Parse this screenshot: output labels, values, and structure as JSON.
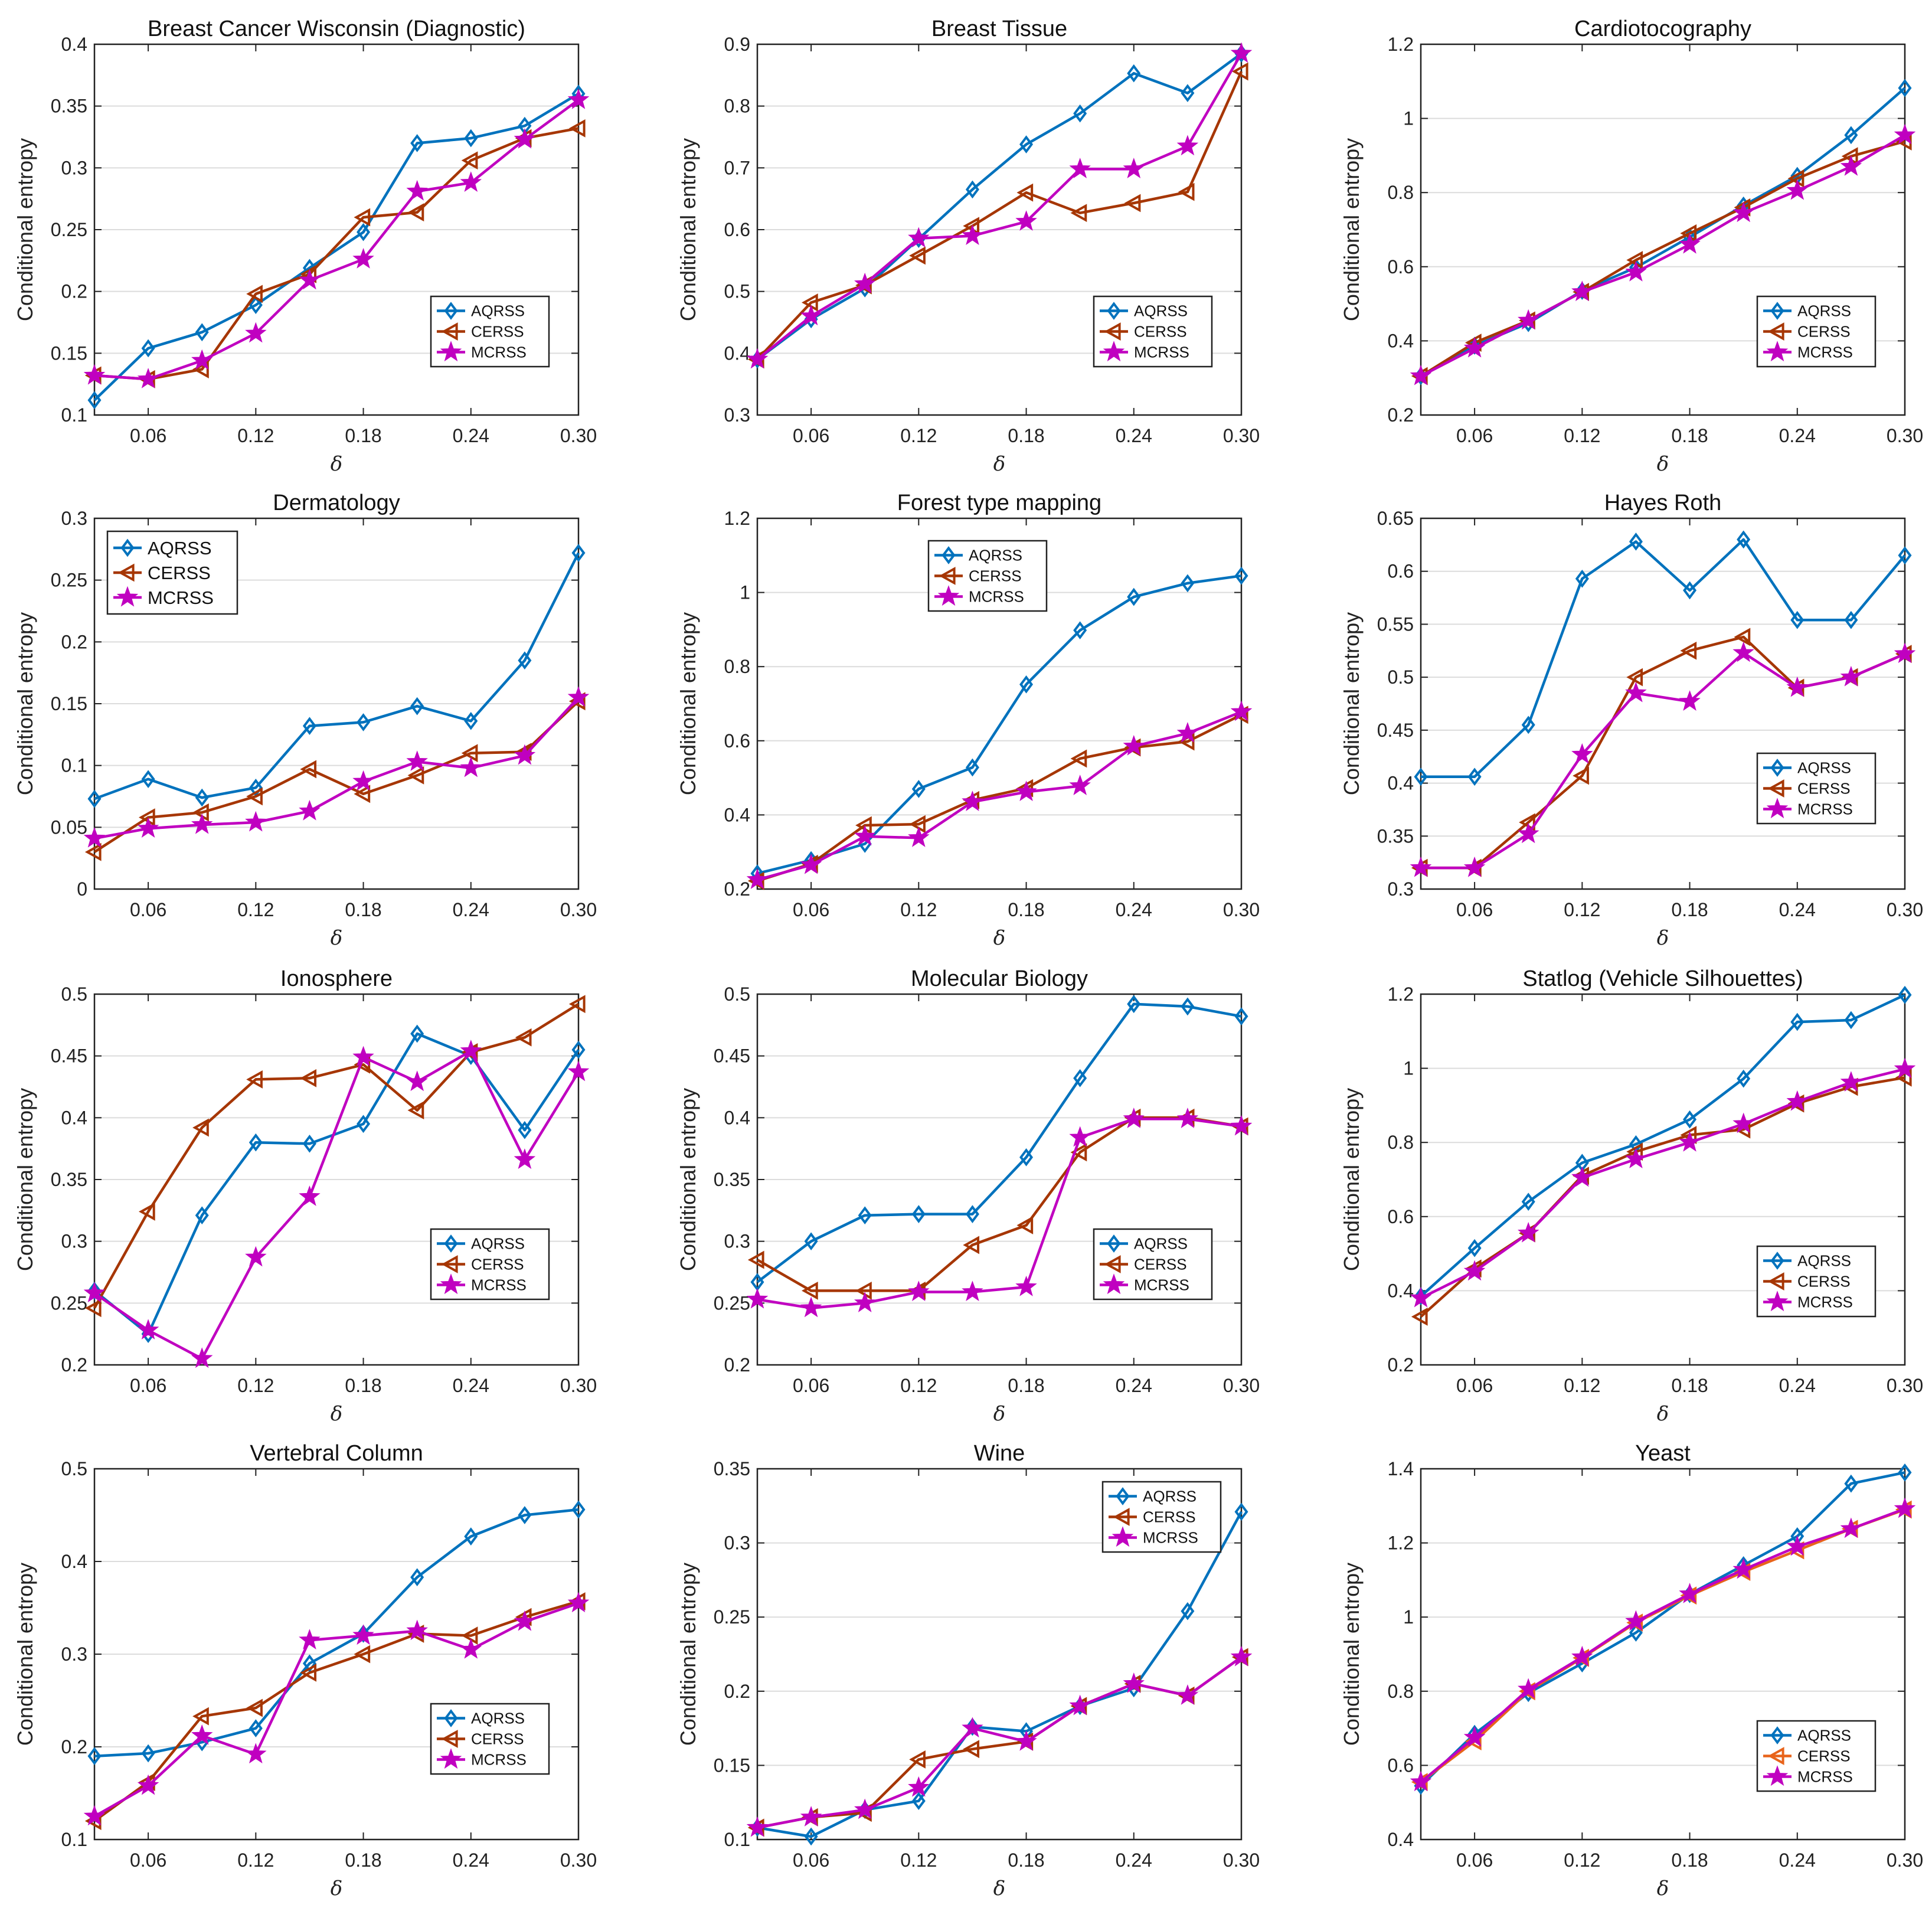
{
  "x_label": "δ",
  "y_label": "Conditional entropy",
  "legend_entries": [
    "AQRSS",
    "CERSS",
    "MCRSS"
  ],
  "colors": {
    "AQRSS": "#0072bd",
    "CERSS": "#a63603",
    "MCRSS": "#c000c0",
    "CERSS_yeast": "#e8641b"
  },
  "chart_data": [
    {
      "type": "line",
      "title": "Breast Cancer Wisconsin (Diagnostic)",
      "xlabel": "δ",
      "ylabel": "Conditional entropy",
      "x": [
        0.03,
        0.06,
        0.09,
        0.12,
        0.15,
        0.18,
        0.21,
        0.24,
        0.27,
        0.3
      ],
      "xticks": [
        "0.06",
        "0.12",
        "0.18",
        "0.24",
        "0.30"
      ],
      "xlim": [
        0.03,
        0.3
      ],
      "ylim": [
        0.1,
        0.4
      ],
      "yticks": [
        "0.1",
        "0.15",
        "0.2",
        "0.25",
        "0.3",
        "0.35",
        "0.4"
      ],
      "legend": "middle-right",
      "series": [
        {
          "name": "AQRSS",
          "values": [
            0.112,
            0.154,
            0.167,
            0.189,
            0.219,
            0.248,
            0.32,
            0.324,
            0.334,
            0.36
          ]
        },
        {
          "name": "CERSS",
          "values": [
            0.132,
            0.129,
            0.137,
            0.198,
            0.214,
            0.26,
            0.264,
            0.306,
            0.324,
            0.332
          ]
        },
        {
          "name": "MCRSS",
          "values": [
            0.132,
            0.129,
            0.144,
            0.166,
            0.209,
            0.226,
            0.281,
            0.288,
            0.323,
            0.355
          ]
        }
      ]
    },
    {
      "type": "line",
      "title": "Breast Tissue",
      "xlabel": "δ",
      "ylabel": "Conditional entropy",
      "x": [
        0.03,
        0.06,
        0.09,
        0.12,
        0.15,
        0.18,
        0.21,
        0.24,
        0.27,
        0.3
      ],
      "xticks": [
        "0.06",
        "0.12",
        "0.18",
        "0.24",
        "0.30"
      ],
      "xlim": [
        0.03,
        0.3
      ],
      "ylim": [
        0.3,
        0.9
      ],
      "yticks": [
        "0.3",
        "0.4",
        "0.5",
        "0.6",
        "0.7",
        "0.8",
        "0.9"
      ],
      "legend": "middle-right",
      "series": [
        {
          "name": "AQRSS",
          "values": [
            0.39,
            0.455,
            0.505,
            0.585,
            0.665,
            0.738,
            0.788,
            0.853,
            0.821,
            0.885
          ]
        },
        {
          "name": "CERSS",
          "values": [
            0.39,
            0.482,
            0.51,
            0.558,
            0.606,
            0.66,
            0.627,
            0.643,
            0.661,
            0.856
          ]
        },
        {
          "name": "MCRSS",
          "values": [
            0.39,
            0.46,
            0.512,
            0.586,
            0.59,
            0.613,
            0.698,
            0.698,
            0.735,
            0.885
          ]
        }
      ]
    },
    {
      "type": "line",
      "title": "Cardiotocography",
      "xlabel": "δ",
      "ylabel": "Conditional entropy",
      "x": [
        0.03,
        0.06,
        0.09,
        0.12,
        0.15,
        0.18,
        0.21,
        0.24,
        0.27,
        0.3
      ],
      "xticks": [
        "0.06",
        "0.12",
        "0.18",
        "0.24",
        "0.30"
      ],
      "xlim": [
        0.03,
        0.3
      ],
      "ylim": [
        0.2,
        1.2
      ],
      "yticks": [
        "0.2",
        "0.4",
        "0.6",
        "0.8",
        "1",
        "1.2"
      ],
      "legend": "middle-right",
      "series": [
        {
          "name": "AQRSS",
          "values": [
            0.305,
            0.387,
            0.448,
            0.535,
            0.598,
            0.68,
            0.765,
            0.845,
            0.955,
            1.082
          ]
        },
        {
          "name": "CERSS",
          "values": [
            0.305,
            0.395,
            0.455,
            0.532,
            0.618,
            0.69,
            0.76,
            0.838,
            0.898,
            0.938
          ]
        },
        {
          "name": "MCRSS",
          "values": [
            0.305,
            0.38,
            0.455,
            0.532,
            0.585,
            0.66,
            0.745,
            0.805,
            0.87,
            0.955
          ]
        }
      ]
    },
    {
      "type": "line",
      "title": "Dermatology",
      "xlabel": "δ",
      "ylabel": "Conditional entropy",
      "x": [
        0.03,
        0.06,
        0.09,
        0.12,
        0.15,
        0.18,
        0.21,
        0.24,
        0.27,
        0.3
      ],
      "xticks": [
        "0.06",
        "0.12",
        "0.18",
        "0.24",
        "0.30"
      ],
      "xlim": [
        0.03,
        0.3
      ],
      "ylim": [
        0,
        0.3
      ],
      "yticks": [
        "0",
        "0.05",
        "0.1",
        "0.15",
        "0.2",
        "0.25",
        "0.3"
      ],
      "legend": "top-left",
      "series": [
        {
          "name": "AQRSS",
          "values": [
            0.073,
            0.089,
            0.074,
            0.082,
            0.132,
            0.135,
            0.148,
            0.136,
            0.185,
            0.272
          ]
        },
        {
          "name": "CERSS",
          "values": [
            0.03,
            0.058,
            0.062,
            0.075,
            0.097,
            0.077,
            0.092,
            0.11,
            0.111,
            0.152
          ]
        },
        {
          "name": "MCRSS",
          "values": [
            0.041,
            0.049,
            0.052,
            0.054,
            0.063,
            0.087,
            0.103,
            0.098,
            0.108,
            0.155
          ]
        }
      ]
    },
    {
      "type": "line",
      "title": "Forest type mapping",
      "xlabel": "δ",
      "ylabel": "Conditional entropy",
      "x": [
        0.03,
        0.06,
        0.09,
        0.12,
        0.15,
        0.18,
        0.21,
        0.24,
        0.27,
        0.3
      ],
      "xticks": [
        "0.06",
        "0.12",
        "0.18",
        "0.24",
        "0.30"
      ],
      "xlim": [
        0.03,
        0.3
      ],
      "ylim": [
        0.2,
        1.2
      ],
      "yticks": [
        "0.2",
        "0.4",
        "0.6",
        "0.8",
        "1",
        "1.2"
      ],
      "legend": "top-center",
      "series": [
        {
          "name": "AQRSS",
          "values": [
            0.242,
            0.278,
            0.322,
            0.47,
            0.528,
            0.752,
            0.898,
            0.988,
            1.025,
            1.045
          ]
        },
        {
          "name": "CERSS",
          "values": [
            0.222,
            0.268,
            0.372,
            0.375,
            0.44,
            0.472,
            0.552,
            0.582,
            0.598,
            0.67
          ]
        },
        {
          "name": "MCRSS",
          "values": [
            0.225,
            0.265,
            0.342,
            0.338,
            0.435,
            0.462,
            0.478,
            0.585,
            0.62,
            0.678
          ]
        }
      ]
    },
    {
      "type": "line",
      "title": "Hayes Roth",
      "xlabel": "δ",
      "ylabel": "Conditional entropy",
      "x": [
        0.03,
        0.06,
        0.09,
        0.12,
        0.15,
        0.18,
        0.21,
        0.24,
        0.27,
        0.3
      ],
      "xticks": [
        "0.06",
        "0.12",
        "0.18",
        "0.24",
        "0.30"
      ],
      "xlim": [
        0.03,
        0.3
      ],
      "ylim": [
        0.3,
        0.65
      ],
      "yticks": [
        "0.3",
        "0.35",
        "0.4",
        "0.45",
        "0.5",
        "0.55",
        "0.6",
        "0.65"
      ],
      "legend": "lower-right",
      "series": [
        {
          "name": "AQRSS",
          "values": [
            0.406,
            0.406,
            0.455,
            0.593,
            0.628,
            0.582,
            0.63,
            0.554,
            0.554,
            0.615
          ]
        },
        {
          "name": "CERSS",
          "values": [
            0.32,
            0.32,
            0.363,
            0.407,
            0.5,
            0.525,
            0.538,
            0.49,
            0.5,
            0.522
          ]
        },
        {
          "name": "MCRSS",
          "values": [
            0.32,
            0.32,
            0.352,
            0.427,
            0.485,
            0.477,
            0.523,
            0.49,
            0.5,
            0.522
          ]
        }
      ]
    },
    {
      "type": "line",
      "title": "Ionosphere",
      "xlabel": "δ",
      "ylabel": "Conditional entropy",
      "x": [
        0.03,
        0.06,
        0.09,
        0.12,
        0.15,
        0.18,
        0.21,
        0.24,
        0.27,
        0.3
      ],
      "xticks": [
        "0.06",
        "0.12",
        "0.18",
        "0.24",
        "0.30"
      ],
      "xlim": [
        0.03,
        0.3
      ],
      "ylim": [
        0.2,
        0.5
      ],
      "yticks": [
        "0.2",
        "0.25",
        "0.3",
        "0.35",
        "0.4",
        "0.45",
        "0.5"
      ],
      "legend": "lower-right",
      "series": [
        {
          "name": "AQRSS",
          "values": [
            0.26,
            0.225,
            0.321,
            0.38,
            0.379,
            0.395,
            0.468,
            0.45,
            0.39,
            0.455
          ]
        },
        {
          "name": "CERSS",
          "values": [
            0.246,
            0.324,
            0.392,
            0.431,
            0.432,
            0.443,
            0.406,
            0.453,
            0.465,
            0.492
          ]
        },
        {
          "name": "MCRSS",
          "values": [
            0.258,
            0.228,
            0.205,
            0.287,
            0.336,
            0.449,
            0.429,
            0.454,
            0.366,
            0.437
          ]
        }
      ]
    },
    {
      "type": "line",
      "title": "Molecular Biology",
      "xlabel": "δ",
      "ylabel": "Conditional entropy",
      "x": [
        0.03,
        0.06,
        0.09,
        0.12,
        0.15,
        0.18,
        0.21,
        0.24,
        0.27,
        0.3
      ],
      "xticks": [
        "0.06",
        "0.12",
        "0.18",
        "0.24",
        "0.30"
      ],
      "xlim": [
        0.03,
        0.3
      ],
      "ylim": [
        0.2,
        0.5
      ],
      "yticks": [
        "0.2",
        "0.25",
        "0.3",
        "0.35",
        "0.4",
        "0.45",
        "0.5"
      ],
      "legend": "lower-right",
      "series": [
        {
          "name": "AQRSS",
          "values": [
            0.267,
            0.3,
            0.321,
            0.322,
            0.322,
            0.368,
            0.432,
            0.492,
            0.49,
            0.482
          ]
        },
        {
          "name": "CERSS",
          "values": [
            0.285,
            0.26,
            0.26,
            0.26,
            0.297,
            0.313,
            0.372,
            0.4,
            0.4,
            0.393
          ]
        },
        {
          "name": "MCRSS",
          "values": [
            0.253,
            0.246,
            0.25,
            0.259,
            0.259,
            0.263,
            0.384,
            0.399,
            0.399,
            0.393
          ]
        }
      ]
    },
    {
      "type": "line",
      "title": "Statlog (Vehicle Silhouettes)",
      "xlabel": "δ",
      "ylabel": "Conditional entropy",
      "x": [
        0.03,
        0.06,
        0.09,
        0.12,
        0.15,
        0.18,
        0.21,
        0.24,
        0.27,
        0.3
      ],
      "xticks": [
        "0.06",
        "0.12",
        "0.18",
        "0.24",
        "0.30"
      ],
      "xlim": [
        0.03,
        0.3
      ],
      "ylim": [
        0.2,
        1.2
      ],
      "yticks": [
        "0.2",
        "0.4",
        "0.6",
        "0.8",
        "1",
        "1.2"
      ],
      "legend": "middle-right",
      "series": [
        {
          "name": "AQRSS",
          "values": [
            0.385,
            0.515,
            0.64,
            0.745,
            0.795,
            0.862,
            0.972,
            1.125,
            1.13,
            1.198
          ]
        },
        {
          "name": "CERSS",
          "values": [
            0.33,
            0.46,
            0.555,
            0.71,
            0.775,
            0.82,
            0.835,
            0.905,
            0.95,
            0.975
          ]
        },
        {
          "name": "MCRSS",
          "values": [
            0.38,
            0.452,
            0.555,
            0.705,
            0.755,
            0.8,
            0.85,
            0.91,
            0.962,
            0.998
          ]
        }
      ]
    },
    {
      "type": "line",
      "title": "Vertebral Column",
      "xlabel": "δ",
      "ylabel": "Conditional entropy",
      "x": [
        0.03,
        0.06,
        0.09,
        0.12,
        0.15,
        0.18,
        0.21,
        0.24,
        0.27,
        0.3
      ],
      "xticks": [
        "0.06",
        "0.12",
        "0.18",
        "0.24",
        "0.30"
      ],
      "xlim": [
        0.03,
        0.3
      ],
      "ylim": [
        0.1,
        0.5
      ],
      "yticks": [
        "0.1",
        "0.2",
        "0.3",
        "0.4",
        "0.5"
      ],
      "legend": "lower-right",
      "series": [
        {
          "name": "AQRSS",
          "values": [
            0.19,
            0.193,
            0.205,
            0.22,
            0.29,
            0.322,
            0.383,
            0.427,
            0.45,
            0.456
          ]
        },
        {
          "name": "CERSS",
          "values": [
            0.12,
            0.162,
            0.233,
            0.242,
            0.28,
            0.3,
            0.322,
            0.32,
            0.34,
            0.357
          ]
        },
        {
          "name": "MCRSS",
          "values": [
            0.125,
            0.158,
            0.212,
            0.192,
            0.315,
            0.32,
            0.325,
            0.305,
            0.335,
            0.355
          ]
        }
      ]
    },
    {
      "type": "line",
      "title": "Wine",
      "xlabel": "δ",
      "ylabel": "Conditional entropy",
      "x": [
        0.03,
        0.06,
        0.09,
        0.12,
        0.15,
        0.18,
        0.21,
        0.24,
        0.27,
        0.3
      ],
      "xticks": [
        "0.06",
        "0.12",
        "0.18",
        "0.24",
        "0.30"
      ],
      "xlim": [
        0.03,
        0.3
      ],
      "ylim": [
        0.1,
        0.35
      ],
      "yticks": [
        "0.1",
        "0.15",
        "0.2",
        "0.25",
        "0.3",
        "0.35"
      ],
      "legend": "top-right",
      "series": [
        {
          "name": "AQRSS",
          "values": [
            0.108,
            0.102,
            0.12,
            0.126,
            0.176,
            0.173,
            0.19,
            0.202,
            0.254,
            0.321
          ]
        },
        {
          "name": "CERSS",
          "values": [
            0.108,
            0.115,
            0.118,
            0.154,
            0.161,
            0.166,
            0.19,
            0.205,
            0.197,
            0.223
          ]
        },
        {
          "name": "MCRSS",
          "values": [
            0.108,
            0.115,
            0.12,
            0.135,
            0.175,
            0.166,
            0.19,
            0.205,
            0.197,
            0.223
          ]
        }
      ]
    },
    {
      "type": "line",
      "title": "Yeast",
      "xlabel": "δ",
      "ylabel": "Conditional entropy",
      "x": [
        0.03,
        0.06,
        0.09,
        0.12,
        0.15,
        0.18,
        0.21,
        0.24,
        0.27,
        0.3
      ],
      "xticks": [
        "0.06",
        "0.12",
        "0.18",
        "0.24",
        "0.30"
      ],
      "xlim": [
        0.03,
        0.3
      ],
      "ylim": [
        0.4,
        1.4
      ],
      "yticks": [
        "0.4",
        "0.6",
        "0.8",
        "1",
        "1.2",
        "1.4"
      ],
      "legend": "middle-right",
      "series": [
        {
          "name": "AQRSS",
          "values": [
            0.545,
            0.685,
            0.795,
            0.875,
            0.958,
            1.062,
            1.14,
            1.218,
            1.36,
            1.39
          ]
        },
        {
          "name": "CERSS",
          "values": [
            0.555,
            0.665,
            0.8,
            0.89,
            0.985,
            1.058,
            1.122,
            1.18,
            1.238,
            1.29
          ]
        },
        {
          "name": "MCRSS",
          "values": [
            0.555,
            0.675,
            0.805,
            0.892,
            0.988,
            1.062,
            1.128,
            1.19,
            1.238,
            1.292
          ]
        }
      ]
    }
  ]
}
